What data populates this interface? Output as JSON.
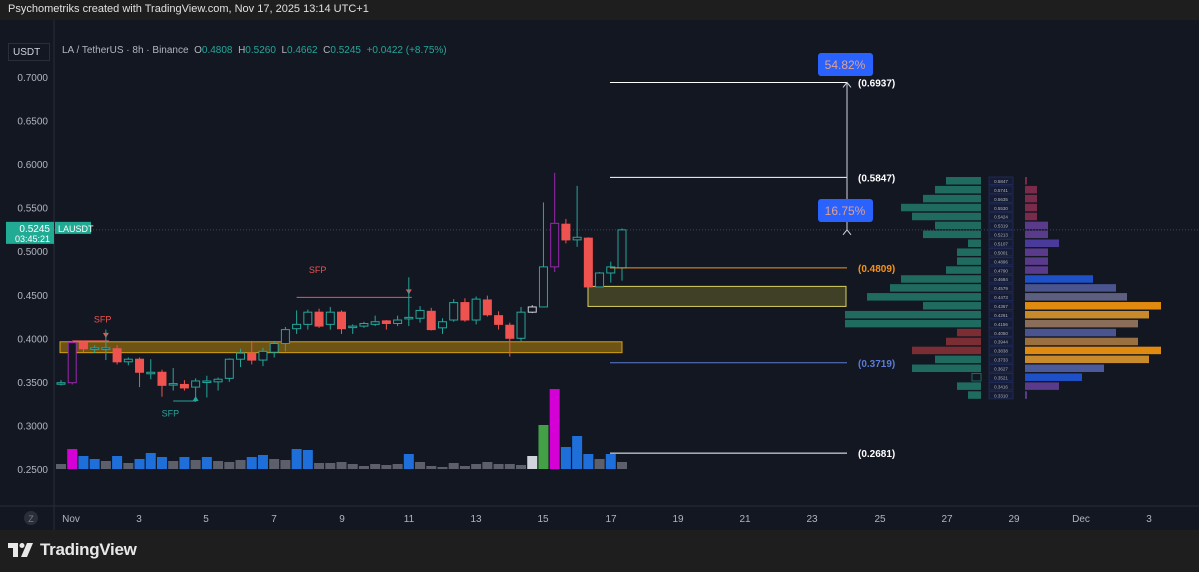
{
  "credit": "Psychometriks created with TradingView.com, Nov 17, 2025 13:14 UTC+1",
  "symbol_button": "USDT",
  "legend": {
    "title": "LA / TetherUS · 8h · Binance",
    "o_label": "O",
    "o": "0.4808",
    "h_label": "H",
    "h": "0.5260",
    "l_label": "L",
    "l": "0.4662",
    "c_label": "C",
    "c": "0.5245",
    "change": "+0.0422 (+8.75%)"
  },
  "price_tag": {
    "price": "0.5245",
    "countdown": "03:45:21",
    "symbol": "LAUSDT"
  },
  "footer": {
    "brand": "TradingView"
  },
  "colors": {
    "up": "#26a69a",
    "down": "#ef5350",
    "highlight": "#9c27b0",
    "accent": "#2962ff",
    "zone": "#b8860b"
  },
  "chart_data": {
    "type": "candlestick",
    "interval": "8h",
    "ylim": [
      0.23,
      0.72
    ],
    "y_ticks": [
      "0.7000",
      "0.6500",
      "0.6000",
      "0.5500",
      "0.5000",
      "0.4500",
      "0.4000",
      "0.3500",
      "0.3000",
      "0.2500"
    ],
    "x_ticks": [
      "Nov",
      "3",
      "5",
      "7",
      "9",
      "11",
      "13",
      "15",
      "17",
      "19",
      "21",
      "23",
      "25",
      "27",
      "29",
      "Dec",
      "3"
    ],
    "candles": [
      [
        0.349,
        0.352,
        0.346,
        0.349
      ],
      [
        0.349,
        0.397,
        0.347,
        0.395
      ],
      [
        0.395,
        0.397,
        0.384,
        0.388
      ],
      [
        0.388,
        0.392,
        0.383,
        0.389
      ],
      [
        0.388,
        0.41,
        0.375,
        0.389
      ],
      [
        0.388,
        0.392,
        0.37,
        0.373
      ],
      [
        0.373,
        0.378,
        0.369,
        0.376
      ],
      [
        0.376,
        0.378,
        0.344,
        0.361
      ],
      [
        0.361,
        0.376,
        0.353,
        0.361
      ],
      [
        0.361,
        0.364,
        0.333,
        0.346
      ],
      [
        0.347,
        0.366,
        0.34,
        0.348
      ],
      [
        0.347,
        0.352,
        0.34,
        0.343
      ],
      [
        0.344,
        0.354,
        0.327,
        0.351
      ],
      [
        0.35,
        0.357,
        0.332,
        0.351
      ],
      [
        0.35,
        0.355,
        0.34,
        0.353
      ],
      [
        0.354,
        0.377,
        0.35,
        0.376
      ],
      [
        0.376,
        0.388,
        0.367,
        0.383
      ],
      [
        0.383,
        0.397,
        0.37,
        0.375
      ],
      [
        0.375,
        0.389,
        0.368,
        0.385
      ],
      [
        0.384,
        0.397,
        0.378,
        0.394
      ],
      [
        0.394,
        0.413,
        0.385,
        0.41
      ],
      [
        0.411,
        0.432,
        0.405,
        0.416
      ],
      [
        0.416,
        0.433,
        0.41,
        0.43
      ],
      [
        0.43,
        0.434,
        0.412,
        0.414
      ],
      [
        0.416,
        0.436,
        0.41,
        0.43
      ],
      [
        0.43,
        0.432,
        0.405,
        0.411
      ],
      [
        0.413,
        0.416,
        0.405,
        0.414
      ],
      [
        0.414,
        0.419,
        0.412,
        0.417
      ],
      [
        0.416,
        0.426,
        0.414,
        0.419
      ],
      [
        0.42,
        0.421,
        0.41,
        0.417
      ],
      [
        0.417,
        0.426,
        0.414,
        0.421
      ],
      [
        0.423,
        0.47,
        0.414,
        0.424
      ],
      [
        0.423,
        0.437,
        0.418,
        0.432
      ],
      [
        0.431,
        0.435,
        0.409,
        0.41
      ],
      [
        0.412,
        0.423,
        0.405,
        0.419
      ],
      [
        0.421,
        0.445,
        0.419,
        0.441
      ],
      [
        0.441,
        0.446,
        0.419,
        0.421
      ],
      [
        0.421,
        0.448,
        0.416,
        0.445
      ],
      [
        0.444,
        0.449,
        0.425,
        0.427
      ],
      [
        0.426,
        0.431,
        0.41,
        0.416
      ],
      [
        0.415,
        0.418,
        0.379,
        0.4
      ],
      [
        0.4,
        0.436,
        0.397,
        0.43
      ],
      [
        0.43,
        0.438,
        0.429,
        0.436
      ],
      [
        0.436,
        0.556,
        0.436,
        0.482
      ],
      [
        0.482,
        0.59,
        0.476,
        0.532
      ],
      [
        0.531,
        0.537,
        0.509,
        0.513
      ],
      [
        0.513,
        0.575,
        0.505,
        0.516
      ],
      [
        0.515,
        0.516,
        0.459,
        0.459
      ],
      [
        0.459,
        0.476,
        0.459,
        0.475
      ],
      [
        0.475,
        0.488,
        0.464,
        0.482
      ],
      [
        0.4808,
        0.526,
        0.4662,
        0.5245
      ]
    ],
    "candle_highlights": {
      "1": "#9c27b0",
      "44": "#9c27b0",
      "42": "#d1d4dc"
    },
    "volume": [
      5,
      20,
      13,
      10,
      8,
      13,
      6,
      10,
      16,
      12,
      8,
      12,
      9,
      12,
      8,
      7,
      9,
      12,
      14,
      10,
      9,
      20,
      19,
      6,
      6,
      7,
      5,
      3,
      5,
      4,
      5,
      15,
      7,
      3,
      2,
      6,
      3,
      5,
      7,
      5,
      5,
      4,
      13,
      44,
      80,
      22,
      33,
      15,
      10,
      15,
      7
    ],
    "volume_colors": [
      "g",
      "m",
      "b",
      "b",
      "g",
      "b",
      "g",
      "b",
      "b",
      "b",
      "g",
      "b",
      "g",
      "b",
      "g",
      "g",
      "g",
      "b",
      "b",
      "g",
      "g",
      "b",
      "b",
      "g",
      "g",
      "g",
      "g",
      "g",
      "g",
      "g",
      "g",
      "b",
      "g",
      "g",
      "g",
      "g",
      "g",
      "g",
      "g",
      "g",
      "g",
      "g",
      "w",
      "gr",
      "m",
      "b",
      "b",
      "b",
      "g",
      "b",
      "g"
    ],
    "levels": [
      {
        "price": 0.6937,
        "label": "(0.6937)",
        "color": "#ffffff"
      },
      {
        "price": 0.5847,
        "label": "(0.5847)",
        "color": "#ffffff"
      },
      {
        "price": 0.4809,
        "label": "(0.4809)",
        "color": "#f7931a"
      },
      {
        "price": 0.3719,
        "label": "(0.3719)",
        "color": "#5b7bd5"
      },
      {
        "price": 0.2681,
        "label": "(0.2681)",
        "color": "#ffffff"
      }
    ],
    "targets": [
      {
        "label": "54.82%",
        "price": 0.6937
      },
      {
        "label": "16.75%",
        "price": 0.5245
      }
    ],
    "zones": [
      {
        "from": 0.3835,
        "to": 0.396,
        "color": "#b8860b"
      },
      {
        "from": 0.4366,
        "to": 0.4596,
        "color": "#6b6a2a"
      }
    ],
    "annotations": [
      {
        "text": "SFP",
        "color": "#ef5350",
        "candle": 4,
        "price": 0.418,
        "marker": "down",
        "level": 0.397,
        "from": 1
      },
      {
        "text": "SFP",
        "color": "#ef5350",
        "candle": 31,
        "price": 0.475,
        "marker": "down",
        "level": 0.447,
        "from": 21
      },
      {
        "text": "SFP",
        "color": "#26a69a",
        "candle": 12,
        "price": 0.31,
        "marker": "up",
        "level": 0.328,
        "from": 10
      }
    ],
    "volume_profile": {
      "prices": [
        "0.5847",
        "0.5741",
        "0.5635",
        "0.5530",
        "0.5424",
        "0.5319",
        "0.5213",
        "0.5107",
        "0.5001",
        "0.4896",
        "0.4790",
        "0.4684",
        "0.4579",
        "0.4473",
        "0.4367",
        "0.4261",
        "0.4156",
        "0.4050",
        "0.3944",
        "0.3838",
        "0.3733",
        "0.3627",
        "0.3521",
        "0.3416",
        "0.3310"
      ],
      "left": [
        35,
        46,
        58,
        80,
        69,
        46,
        58,
        13,
        24,
        24,
        35,
        80,
        91,
        114,
        58,
        136,
        136,
        24,
        35,
        69,
        46,
        69,
        0,
        24,
        13
      ],
      "left_colors": [
        "t",
        "t",
        "t",
        "t",
        "t",
        "t",
        "t",
        "t",
        "t",
        "t",
        "t",
        "t",
        "t",
        "t",
        "t",
        "t",
        "t",
        "r",
        "r",
        "r",
        "t",
        "t",
        "t",
        "t",
        "t"
      ],
      "right": [
        2,
        12,
        12,
        12,
        12,
        23,
        23,
        34,
        23,
        23,
        23,
        68,
        91,
        102,
        136,
        124,
        113,
        91,
        113,
        136,
        124,
        79,
        57,
        34,
        2
      ],
      "right_colors": [
        "#7a2a4a",
        "#7a2a4a",
        "#7a2a4a",
        "#7a2a4a",
        "#7a2a4a",
        "#5a3a8a",
        "#5a3a8a",
        "#4a3a9a",
        "#5a3a8a",
        "#5a3a8a",
        "#5a3a8a",
        "#1e50c8",
        "#4a5590",
        "#5d5f80",
        "#e08a10",
        "#c88a2a",
        "#8a6e5a",
        "#4a5590",
        "#9a7040",
        "#e08a10",
        "#c88a2a",
        "#4a5a9a",
        "#1e50c8",
        "#5a3a8a",
        "#5a3a8a"
      ]
    }
  }
}
